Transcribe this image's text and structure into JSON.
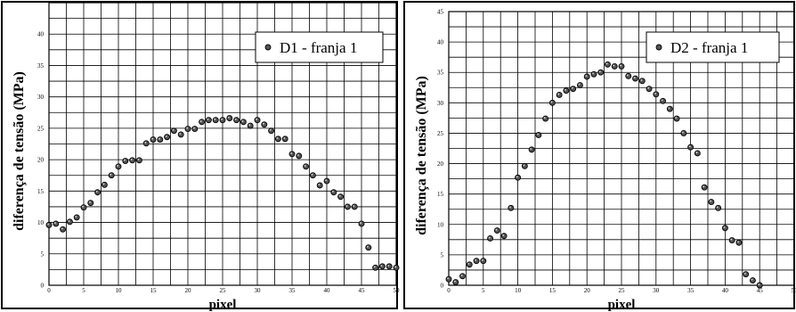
{
  "chart_data": [
    {
      "type": "scatter",
      "xlabel": "pixel",
      "ylabel": "diferença de tensão (MPa)",
      "xlim": [
        0,
        50
      ],
      "ylim": [
        0,
        45
      ],
      "x_ticks": [
        "0",
        "5",
        "10",
        "15",
        "20",
        "25",
        "30",
        "35",
        "40",
        "45",
        "50"
      ],
      "y_ticks": [
        "0",
        "5",
        "10",
        "15",
        "20",
        "25",
        "30",
        "35",
        "40"
      ],
      "grid": true,
      "legend_position": "top-right",
      "series": [
        {
          "name": "D1 - franja 1",
          "x": [
            0,
            1,
            2,
            3,
            4,
            5,
            6,
            7,
            8,
            9,
            10,
            11,
            12,
            13,
            14,
            15,
            16,
            17,
            18,
            19,
            20,
            21,
            22,
            23,
            24,
            25,
            26,
            27,
            28,
            29,
            30,
            31,
            32,
            33,
            34,
            35,
            36,
            37,
            38,
            39,
            40,
            41,
            42,
            43,
            44,
            45,
            46,
            47,
            48,
            49,
            50
          ],
          "y": [
            9.6,
            9.8,
            8.9,
            10.1,
            10.8,
            12.4,
            13.1,
            14.8,
            16.0,
            17.5,
            18.9,
            19.8,
            19.9,
            19.9,
            22.6,
            23.2,
            23.2,
            23.6,
            24.6,
            24.0,
            24.9,
            24.9,
            26.0,
            26.3,
            26.3,
            26.3,
            26.6,
            26.3,
            26.0,
            25.4,
            26.3,
            25.6,
            24.6,
            23.3,
            23.3,
            20.9,
            20.6,
            18.9,
            17.5,
            15.9,
            16.6,
            14.8,
            14.1,
            12.5,
            12.5,
            9.8,
            6.0,
            2.8,
            3.0,
            3.0,
            2.8
          ]
        },
        {
          "name": "D2 - franja 1",
          "x": [
            0,
            1,
            2,
            3,
            4,
            5,
            6,
            7,
            8,
            9,
            10,
            11,
            12,
            13,
            14,
            15,
            16,
            17,
            18,
            19,
            20,
            21,
            22,
            23,
            24,
            25,
            26,
            27,
            28,
            29,
            30,
            31,
            32,
            33,
            34,
            35,
            36,
            37,
            38,
            39,
            40,
            41,
            42,
            43,
            44,
            45
          ],
          "y": [
            1.0,
            0.5,
            1.5,
            3.4,
            4.0,
            4.0,
            7.7,
            9.0,
            8.1,
            12.7,
            17.7,
            19.6,
            22.3,
            24.7,
            27.4,
            30.0,
            31.3,
            32.0,
            32.3,
            32.9,
            34.3,
            34.7,
            35.0,
            36.3,
            36.0,
            36.0,
            34.4,
            34.0,
            33.6,
            32.3,
            31.4,
            30.3,
            29.0,
            27.4,
            25.0,
            22.7,
            21.7,
            16.1,
            13.7,
            12.7,
            9.4,
            7.4,
            7.0,
            1.8,
            0.8,
            0.0
          ]
        }
      ]
    }
  ]
}
